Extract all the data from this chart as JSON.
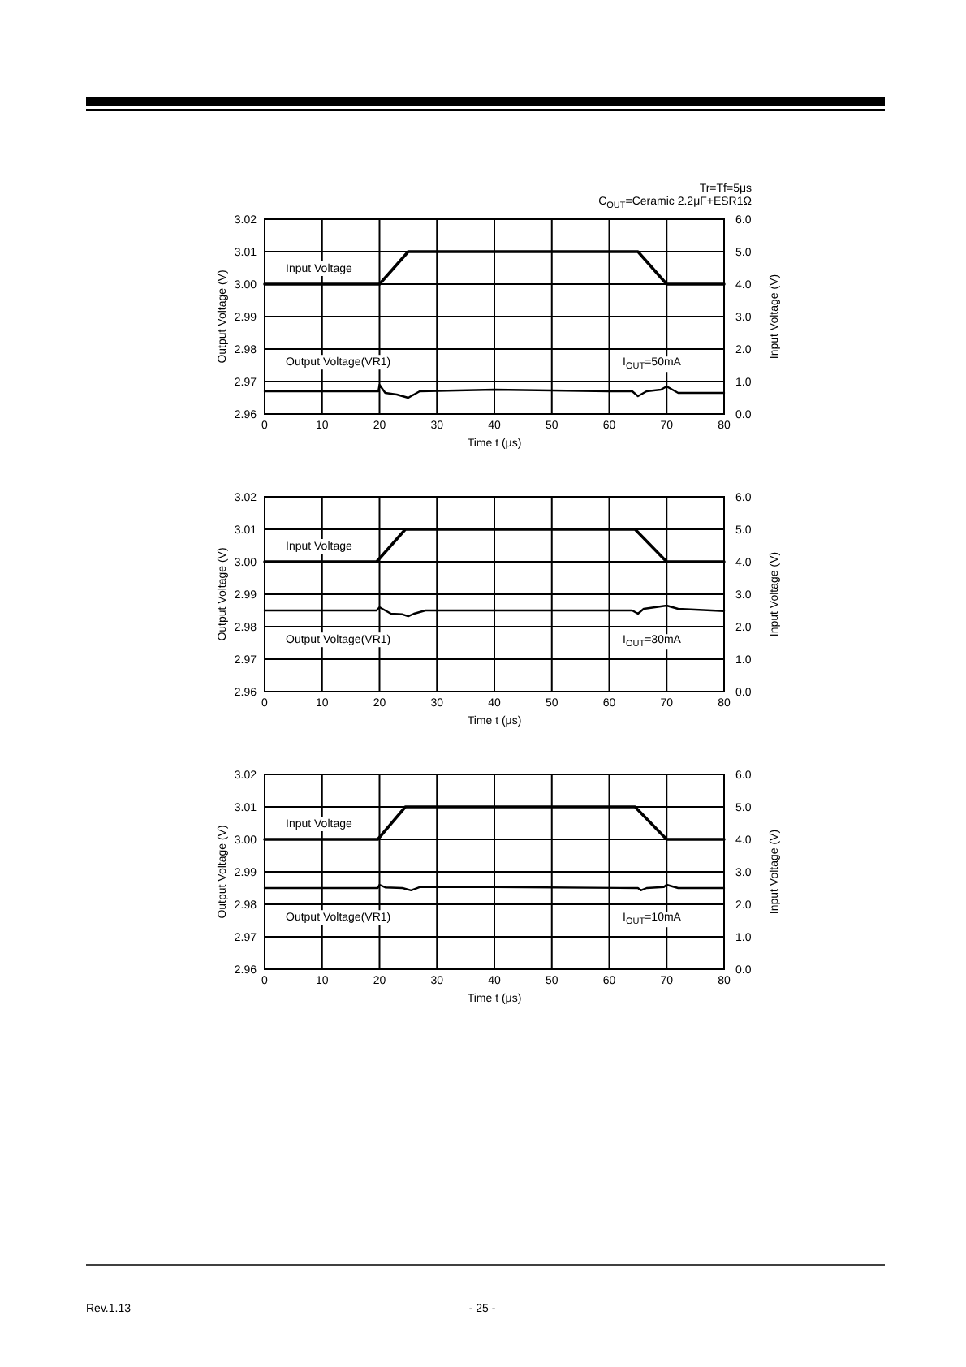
{
  "chart_data": [
    {
      "type": "line",
      "xlabel": "Time t (μs)",
      "ylabel": "Output Voltage  (V)",
      "y2label": "Input Voltage  (V)",
      "xlim": [
        0,
        80
      ],
      "xticks": [
        0,
        10,
        20,
        30,
        40,
        50,
        60,
        70,
        80
      ],
      "ylim": [
        2.96,
        3.02
      ],
      "yticks": [
        {
          "value": 2.96,
          "label": "2.96"
        },
        {
          "value": 2.97,
          "label": "2.97"
        },
        {
          "value": 2.98,
          "label": "2.98"
        },
        {
          "value": 2.99,
          "label": "2.99"
        },
        {
          "value": 3.0,
          "label": "3.00"
        },
        {
          "value": 3.01,
          "label": "3.01"
        },
        {
          "value": 3.02,
          "label": "3.02"
        }
      ],
      "y2lim": [
        0,
        6
      ],
      "y2ticks": [
        {
          "value": 0,
          "label": "0.0"
        },
        {
          "value": 1,
          "label": "1.0"
        },
        {
          "value": 2,
          "label": "2.0"
        },
        {
          "value": 3,
          "label": "3.0"
        },
        {
          "value": 4,
          "label": "4.0"
        },
        {
          "value": 5,
          "label": "5.0"
        },
        {
          "value": 6,
          "label": "6.0"
        }
      ],
      "grid": true,
      "series": [
        {
          "name": "Input Voltage",
          "color": "#000000",
          "axis": "y2",
          "x": [
            0,
            20,
            25,
            65,
            70,
            80
          ],
          "values": [
            4,
            4,
            5,
            5,
            4,
            4
          ]
        },
        {
          "name": "Output Voltage(VR1)",
          "color": "#000000",
          "x": [
            0,
            19.8,
            20,
            21,
            23,
            25,
            27,
            40,
            60,
            64,
            65,
            66.5,
            69,
            70,
            72,
            80
          ],
          "values": [
            2.967,
            2.967,
            2.969,
            2.9665,
            2.966,
            2.965,
            2.967,
            2.9675,
            2.967,
            2.967,
            2.9655,
            2.967,
            2.9675,
            2.9685,
            2.9665,
            2.9665
          ]
        }
      ],
      "annotations": [
        "Tr=Tf=5μs",
        "C$_{OUT}$=Ceramic 2.2μF+ESR1Ω",
        "I$_{OUT}$=50mA"
      ]
    },
    {
      "type": "line",
      "xlabel": "Time t (μs)",
      "ylabel": "Output Voltage  (V)",
      "y2label": "Input Voltage  (V)",
      "xlim": [
        0,
        80
      ],
      "xticks": [
        0,
        10,
        20,
        30,
        40,
        50,
        60,
        70,
        80
      ],
      "ylim": [
        2.96,
        3.02
      ],
      "yticks": [
        {
          "value": 2.96,
          "label": "2.96"
        },
        {
          "value": 2.97,
          "label": "2.97"
        },
        {
          "value": 2.98,
          "label": "2.98"
        },
        {
          "value": 2.99,
          "label": "2.99"
        },
        {
          "value": 3.0,
          "label": "3.00"
        },
        {
          "value": 3.01,
          "label": "3.01"
        },
        {
          "value": 3.02,
          "label": "3.02"
        }
      ],
      "y2lim": [
        0,
        6
      ],
      "y2ticks": [
        {
          "value": 0,
          "label": "0.0"
        },
        {
          "value": 1,
          "label": "1.0"
        },
        {
          "value": 2,
          "label": "2.0"
        },
        {
          "value": 3,
          "label": "3.0"
        },
        {
          "value": 4,
          "label": "4.0"
        },
        {
          "value": 5,
          "label": "5.0"
        },
        {
          "value": 6,
          "label": "6.0"
        }
      ],
      "grid": true,
      "series": [
        {
          "name": "Input Voltage",
          "color": "#000000",
          "axis": "y2",
          "x": [
            0,
            19.5,
            24.5,
            64.5,
            70,
            80
          ],
          "values": [
            4,
            4,
            5,
            5,
            4,
            4
          ]
        },
        {
          "name": "Output Voltage(VR1)",
          "color": "#000000",
          "x": [
            0,
            19.5,
            20,
            22,
            24,
            25,
            26,
            28,
            40,
            64,
            65,
            66,
            68,
            70,
            72,
            80
          ],
          "values": [
            2.985,
            2.985,
            2.986,
            2.984,
            2.9838,
            2.9832,
            2.984,
            2.985,
            2.985,
            2.985,
            2.984,
            2.9855,
            2.986,
            2.9865,
            2.9855,
            2.9848
          ]
        }
      ],
      "annotations": [
        "I$_{OUT}$=30mA"
      ]
    },
    {
      "type": "line",
      "xlabel": "Time t (μs)",
      "ylabel": "Output Voltage  (V)",
      "y2label": "Input Voltage  (V)",
      "xlim": [
        0,
        80
      ],
      "xticks": [
        0,
        10,
        20,
        30,
        40,
        50,
        60,
        70,
        80
      ],
      "ylim": [
        2.96,
        3.02
      ],
      "yticks": [
        {
          "value": 2.96,
          "label": "2.96"
        },
        {
          "value": 2.97,
          "label": "2.97"
        },
        {
          "value": 2.98,
          "label": "2.98"
        },
        {
          "value": 2.99,
          "label": "2.99"
        },
        {
          "value": 3.0,
          "label": "3.00"
        },
        {
          "value": 3.01,
          "label": "3.01"
        },
        {
          "value": 3.02,
          "label": "3.02"
        }
      ],
      "y2lim": [
        0,
        6
      ],
      "y2ticks": [
        {
          "value": 0,
          "label": "0.0"
        },
        {
          "value": 1,
          "label": "1.0"
        },
        {
          "value": 2,
          "label": "2.0"
        },
        {
          "value": 3,
          "label": "3.0"
        },
        {
          "value": 4,
          "label": "4.0"
        },
        {
          "value": 5,
          "label": "5.0"
        },
        {
          "value": 6,
          "label": "6.0"
        }
      ],
      "grid": true,
      "series": [
        {
          "name": "Input Voltage",
          "color": "#000000",
          "axis": "y2",
          "x": [
            0,
            19.7,
            24.5,
            64.5,
            70,
            80
          ],
          "values": [
            4,
            4,
            5,
            5,
            4,
            4
          ]
        },
        {
          "name": "Output Voltage(VR1)",
          "color": "#000000",
          "x": [
            0,
            19.7,
            20,
            21,
            24,
            25.5,
            27,
            40,
            65,
            65.5,
            66.5,
            69.5,
            70,
            72,
            80
          ],
          "values": [
            2.985,
            2.985,
            2.986,
            2.9852,
            2.985,
            2.9843,
            2.9853,
            2.9853,
            2.985,
            2.9843,
            2.985,
            2.9853,
            2.986,
            2.985,
            2.985
          ]
        }
      ],
      "annotations": [
        "I$_{OUT}$=10mA"
      ]
    },
    {
      "type": "other",
      "annotations": [
        "Rev.1.13",
        "- 25 -"
      ]
    }
  ]
}
